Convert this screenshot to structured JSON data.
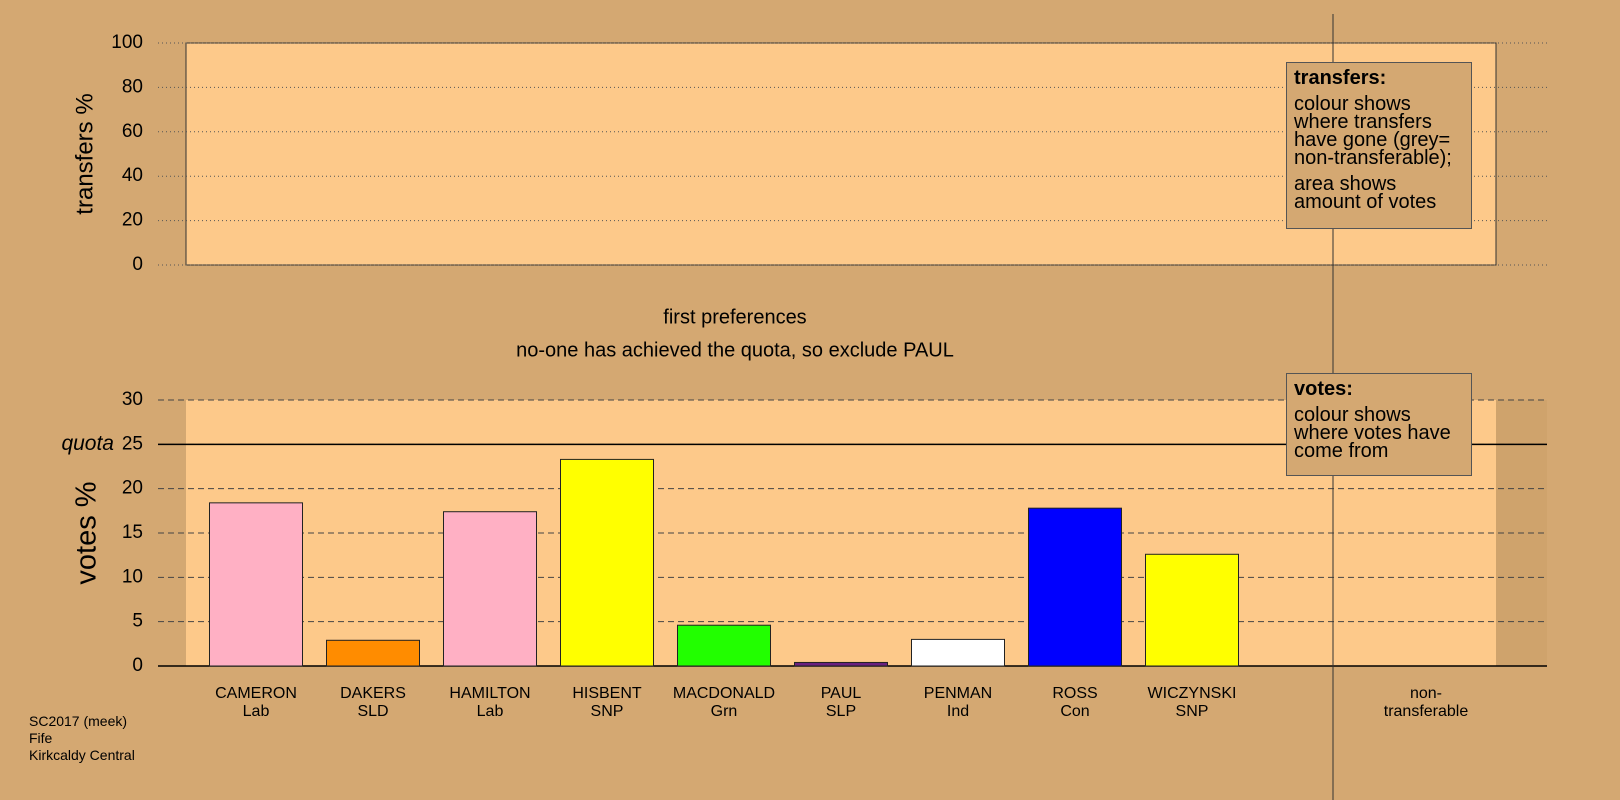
{
  "chart_data": [
    {
      "type": "bar",
      "ylabel": "transfers %",
      "ylim": [
        0,
        100
      ],
      "yticks": [
        0,
        20,
        40,
        60,
        80,
        100
      ],
      "legend": {
        "title": "transfers:",
        "lines": [
          "colour shows where transfers have gone (grey= non-transferable);",
          "area shows amount of votes"
        ]
      }
    },
    {
      "type": "bar",
      "title": "first preferences",
      "subtitle": "no-one has achieved the quota, so exclude PAUL",
      "ylabel": "votes %",
      "ylim": [
        0,
        30
      ],
      "yticks": [
        0,
        5,
        10,
        15,
        20,
        25,
        30
      ],
      "quota": {
        "value": 25,
        "label": "quota"
      },
      "categories": [
        "CAMERON",
        "DAKERS",
        "HAMILTON",
        "HISBENT",
        "MACDONALD",
        "PAUL",
        "PENMAN",
        "ROSS",
        "WICZYNSKI",
        "non-transferable"
      ],
      "parties": [
        "Lab",
        "SLD",
        "Lab",
        "SNP",
        "Grn",
        "SLP",
        "Ind",
        "Con",
        "SNP",
        null
      ],
      "values": [
        18.4,
        2.9,
        17.4,
        23.3,
        4.6,
        0.4,
        3.0,
        17.8,
        12.6,
        null
      ],
      "colors": [
        "#ffb0c4",
        "#ff8c00",
        "#ffb0c4",
        "#ffff00",
        "#22ff00",
        "#6a2080",
        "#ffffff",
        "#0000ff",
        "#ffff00",
        null
      ],
      "legend": {
        "title": "votes:",
        "lines": [
          "colour shows where votes have come from"
        ]
      }
    }
  ],
  "footer": [
    "SC2017 (meek)",
    "Fife",
    "Kirkcaldy Central"
  ]
}
